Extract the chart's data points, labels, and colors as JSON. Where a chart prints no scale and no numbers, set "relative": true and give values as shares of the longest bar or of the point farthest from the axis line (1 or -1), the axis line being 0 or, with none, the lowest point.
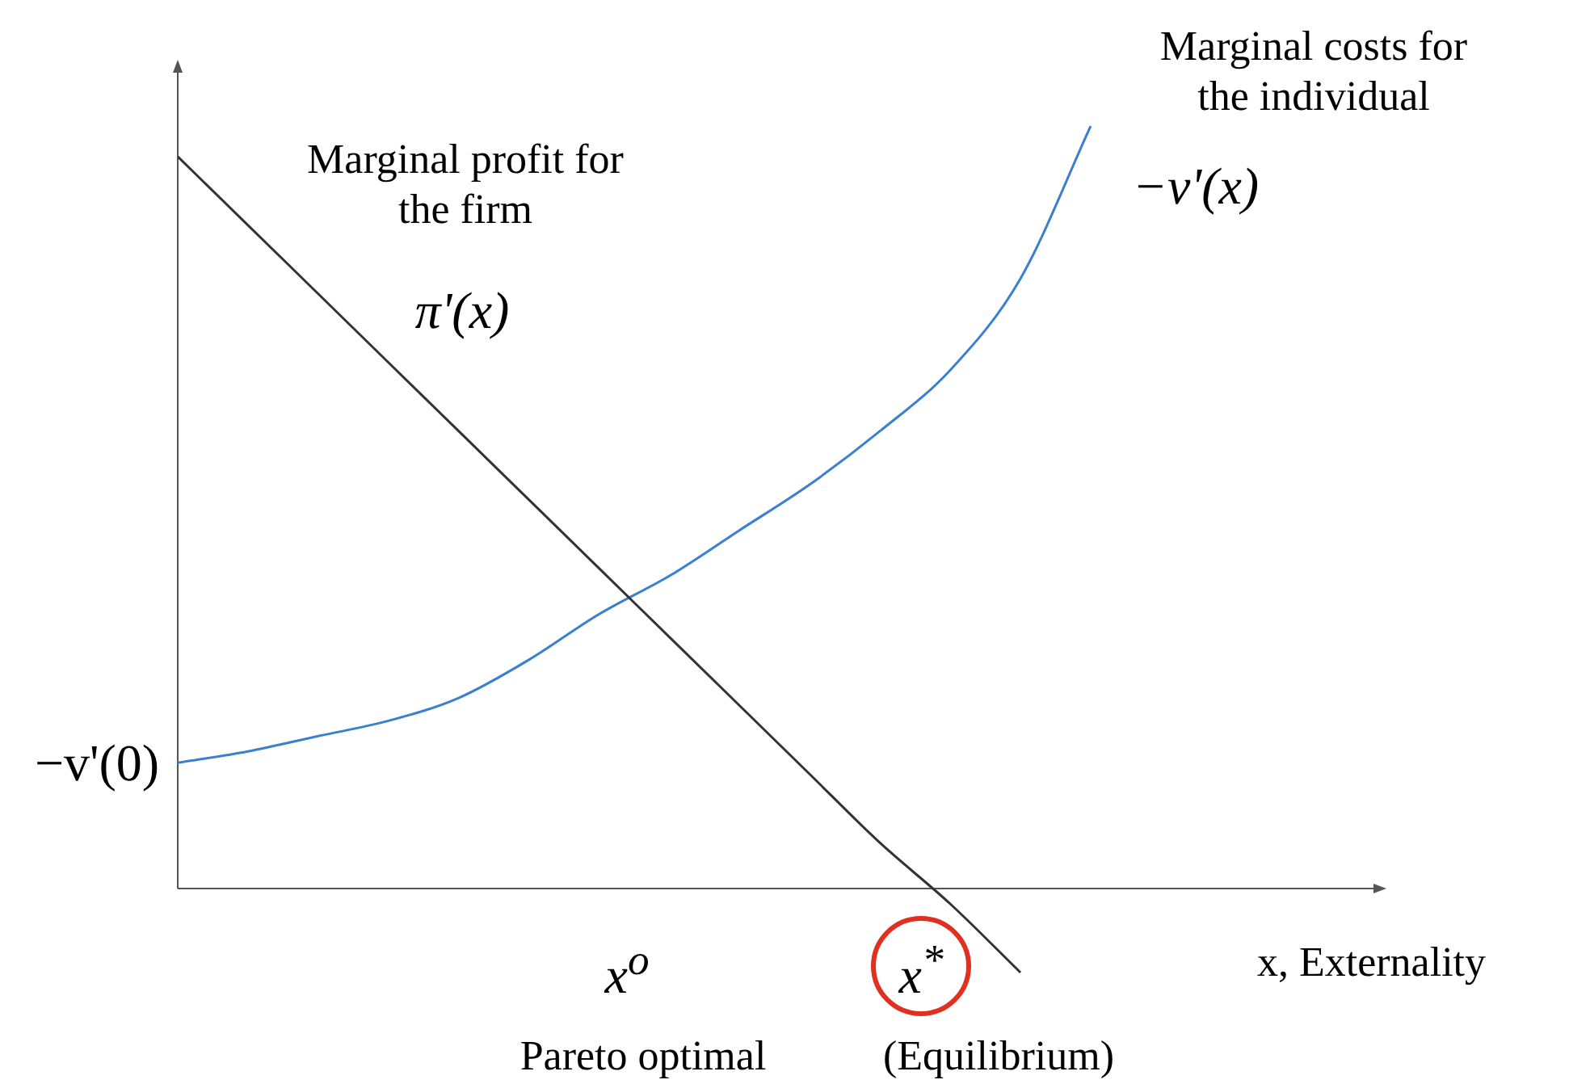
{
  "chart_data": {
    "type": "line",
    "relative": true,
    "categories": [
      null,
      null,
      null,
      null,
      null,
      null,
      null,
      null,
      null,
      null,
      null,
      null,
      null,
      null
    ],
    "series": [
      {
        "name": "π'(x)",
        "color": "#333333",
        "values": [
          0.96,
          0.87,
          0.78,
          0.69,
          0.6,
          0.51,
          0.42,
          0.33,
          0.24,
          0.15,
          0.06,
          -0.02,
          -0.11,
          null
        ]
      },
      {
        "name": "−v'(x)",
        "color": "#3a7fd0",
        "values": [
          0.165,
          0.18,
          0.2,
          0.22,
          0.25,
          0.3,
          0.36,
          0.41,
          0.47,
          0.53,
          0.6,
          0.68,
          0.8,
          1.0
        ]
      }
    ],
    "xlabel": "x, Externality",
    "annotations": [
      "Marginal profit for the firm",
      "Marginal costs for the individual",
      "−v'(0)",
      "x$^{o}$",
      "x$^{*}$",
      "Pareto optimal",
      "(Equilibrium)"
    ],
    "grid": false,
    "legend": false,
    "marker": "none",
    "line_style": "solid"
  }
}
